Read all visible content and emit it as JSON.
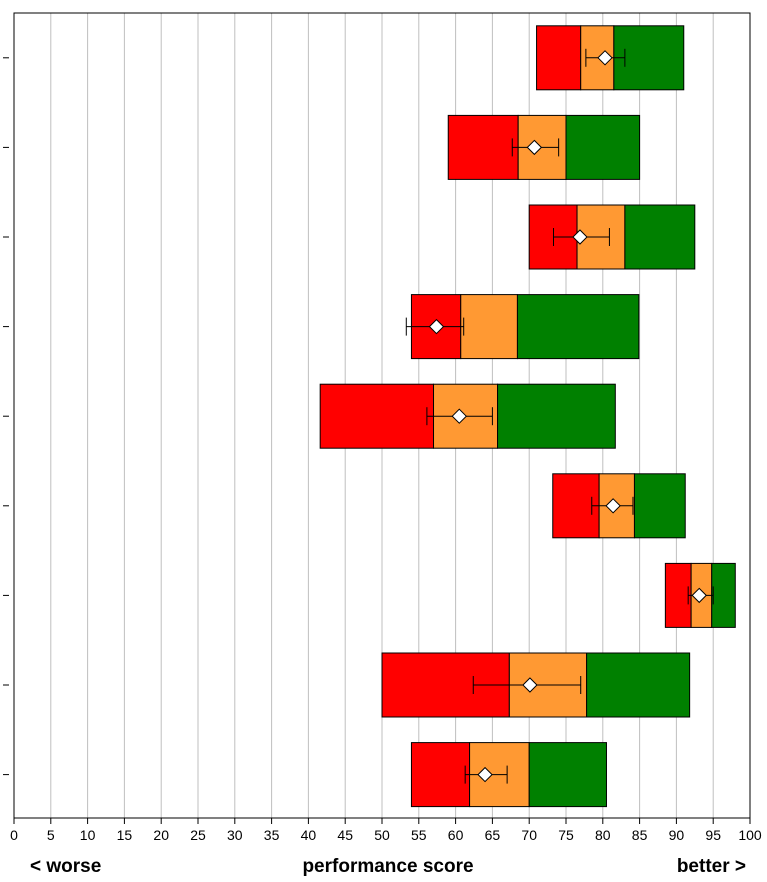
{
  "chart_data": {
    "type": "bar",
    "orientation": "horizontal",
    "xlabel": "performance score",
    "left_label": "< worse",
    "right_label": "better >",
    "xlim": [
      0,
      100
    ],
    "xticks": [
      0,
      5,
      10,
      15,
      20,
      25,
      30,
      35,
      40,
      45,
      50,
      55,
      60,
      65,
      70,
      75,
      80,
      85,
      90,
      95,
      100
    ],
    "grid": "vertical",
    "legend": "none",
    "colors": {
      "low": "#ff0000",
      "mid": "#ff9933",
      "high": "#008000",
      "marker": "#ffffff",
      "grid": "#bfbfbf",
      "border": "#000000"
    },
    "rows": [
      {
        "low_start": 71.0,
        "mid_start": 77.0,
        "high_start": 81.5,
        "high_end": 91.0,
        "point": 80.3,
        "err_low": 77.7,
        "err_high": 83.0
      },
      {
        "low_start": 59.0,
        "mid_start": 68.5,
        "high_start": 75.0,
        "high_end": 85.0,
        "point": 70.7,
        "err_low": 67.7,
        "err_high": 74.0
      },
      {
        "low_start": 70.0,
        "mid_start": 76.5,
        "high_start": 83.0,
        "high_end": 92.5,
        "point": 76.9,
        "err_low": 73.3,
        "err_high": 80.9
      },
      {
        "low_start": 54.0,
        "mid_start": 60.7,
        "high_start": 68.4,
        "high_end": 84.9,
        "point": 57.4,
        "err_low": 53.3,
        "err_high": 61.1
      },
      {
        "low_start": 41.6,
        "mid_start": 57.0,
        "high_start": 65.7,
        "high_end": 81.7,
        "point": 60.5,
        "err_low": 56.1,
        "err_high": 65.0
      },
      {
        "low_start": 73.2,
        "mid_start": 79.5,
        "high_start": 84.3,
        "high_end": 91.2,
        "point": 81.4,
        "err_low": 78.5,
        "err_high": 84.1
      },
      {
        "low_start": 88.5,
        "mid_start": 92.0,
        "high_start": 94.8,
        "high_end": 98.0,
        "point": 93.1,
        "err_low": 91.6,
        "err_high": 95.0
      },
      {
        "low_start": 50.0,
        "mid_start": 67.3,
        "high_start": 77.8,
        "high_end": 91.8,
        "point": 70.1,
        "err_low": 62.4,
        "err_high": 77.0
      },
      {
        "low_start": 54.0,
        "mid_start": 61.9,
        "high_start": 70.0,
        "high_end": 80.5,
        "point": 64.0,
        "err_low": 61.3,
        "err_high": 67.0
      }
    ]
  }
}
